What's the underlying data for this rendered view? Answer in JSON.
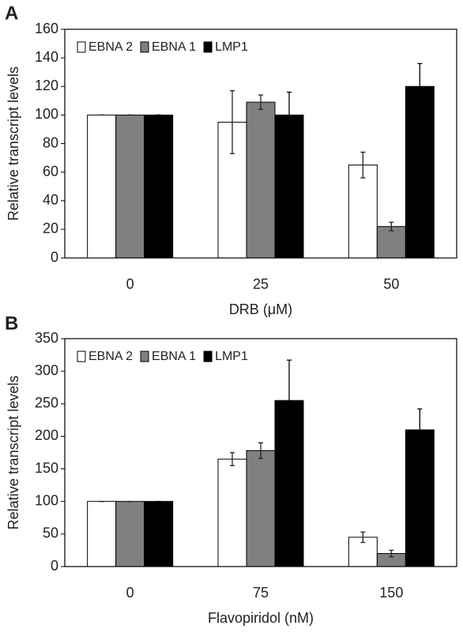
{
  "chart_data": [
    {
      "type": "bar",
      "panel": "A",
      "x_label": "DRB (μM)",
      "y_label": "Relative transcript levels",
      "categories": [
        "0",
        "25",
        "50"
      ],
      "series": [
        {
          "name": "EBNA 2",
          "color": "#ffffff",
          "values": [
            100,
            95,
            65
          ],
          "errors": [
            0,
            22,
            9
          ]
        },
        {
          "name": "EBNA 1",
          "color": "#808080",
          "values": [
            100,
            109,
            22
          ],
          "errors": [
            0,
            5,
            3
          ]
        },
        {
          "name": "LMP1",
          "color": "#000000",
          "values": [
            100,
            100,
            120
          ],
          "errors": [
            0,
            16,
            16
          ]
        }
      ],
      "ylim": [
        0,
        160
      ],
      "yticks": [
        0,
        20,
        40,
        60,
        80,
        100,
        120,
        140,
        160
      ],
      "legend": "top-left"
    },
    {
      "type": "bar",
      "panel": "B",
      "x_label": "Flavopiridol (nM)",
      "y_label": "Relative transcript levels",
      "categories": [
        "0",
        "75",
        "150"
      ],
      "series": [
        {
          "name": "EBNA 2",
          "color": "#ffffff",
          "values": [
            100,
            165,
            45
          ],
          "errors": [
            0,
            10,
            8
          ]
        },
        {
          "name": "EBNA 1",
          "color": "#808080",
          "values": [
            100,
            178,
            20
          ],
          "errors": [
            0,
            12,
            5
          ]
        },
        {
          "name": "LMP1",
          "color": "#000000",
          "values": [
            100,
            255,
            210
          ],
          "errors": [
            0,
            62,
            32
          ]
        }
      ],
      "ylim": [
        0,
        350
      ],
      "yticks": [
        0,
        50,
        100,
        150,
        200,
        250,
        300,
        350
      ],
      "legend": "top-left"
    }
  ]
}
